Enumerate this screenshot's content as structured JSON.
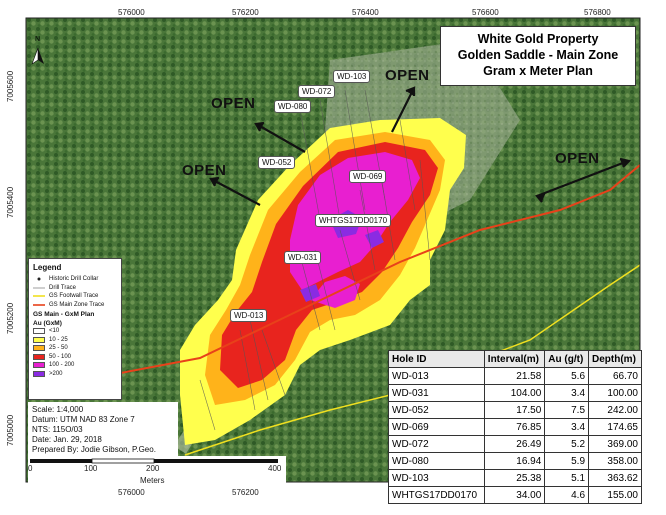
{
  "title": {
    "line1": "White Gold Property",
    "line2": "Golden Saddle - Main Zone",
    "line3": "Gram x Meter Plan"
  },
  "axes": {
    "x_ticks": [
      "576000",
      "576200",
      "576400",
      "576600",
      "576800"
    ],
    "y_ticks": [
      "7005600",
      "7005400",
      "7005200",
      "7005000"
    ]
  },
  "north_label": "N",
  "open_labels": [
    "OPEN",
    "OPEN",
    "OPEN",
    "OPEN"
  ],
  "hole_labels": [
    "WD-103",
    "WD-072",
    "WD-080",
    "WD-052",
    "WD-069",
    "WHTGS17DD0170",
    "WD-031",
    "WD-013"
  ],
  "legend": {
    "title": "Legend",
    "items": [
      "Historic Drill Collar",
      "Drill Trace",
      "GS Footwall Trace",
      "GS Main Zone Trace"
    ],
    "plan_title": "GS Main - GxM Plan",
    "plan_unit": "Au (GxM)",
    "classes": [
      {
        "label": "<10",
        "color": "#ffffff"
      },
      {
        "label": "10 - 25",
        "color": "#ffff4d"
      },
      {
        "label": "25 - 50",
        "color": "#ffb31a"
      },
      {
        "label": "50 - 100",
        "color": "#e8241e"
      },
      {
        "label": "100 - 200",
        "color": "#e81fd0"
      },
      {
        "label": ">200",
        "color": "#8a2be2"
      }
    ]
  },
  "info": {
    "scale": "Scale: 1:4,000",
    "datum": "Datum: UTM NAD 83 Zone 7",
    "nts": "NTS: 115O/03",
    "date": "Date: Jan. 29, 2018",
    "prepared": "Prepared By: Jodie Gibson, P.Geo."
  },
  "scalebar": {
    "labels": [
      "0",
      "100",
      "200",
      "400"
    ],
    "unit": "Meters"
  },
  "table": {
    "headers": [
      "Hole ID",
      "Interval(m)",
      "Au (g/t)",
      "Depth(m)"
    ],
    "rows": [
      [
        "WD-013",
        "21.58",
        "5.6",
        "66.70"
      ],
      [
        "WD-031",
        "104.00",
        "3.4",
        "100.00"
      ],
      [
        "WD-052",
        "17.50",
        "7.5",
        "242.00"
      ],
      [
        "WD-069",
        "76.85",
        "3.4",
        "174.65"
      ],
      [
        "WD-072",
        "26.49",
        "5.2",
        "369.00"
      ],
      [
        "WD-080",
        "16.94",
        "5.9",
        "358.00"
      ],
      [
        "WD-103",
        "25.38",
        "5.1",
        "363.62"
      ],
      [
        "WHTGS17DD0170",
        "34.00",
        "4.6",
        "155.00"
      ]
    ]
  },
  "colors": {
    "forest": "#4e7a3e",
    "clearing": "#8fa37c",
    "main_trace": "#e8411a",
    "footwall_trace": "#f0e020"
  }
}
